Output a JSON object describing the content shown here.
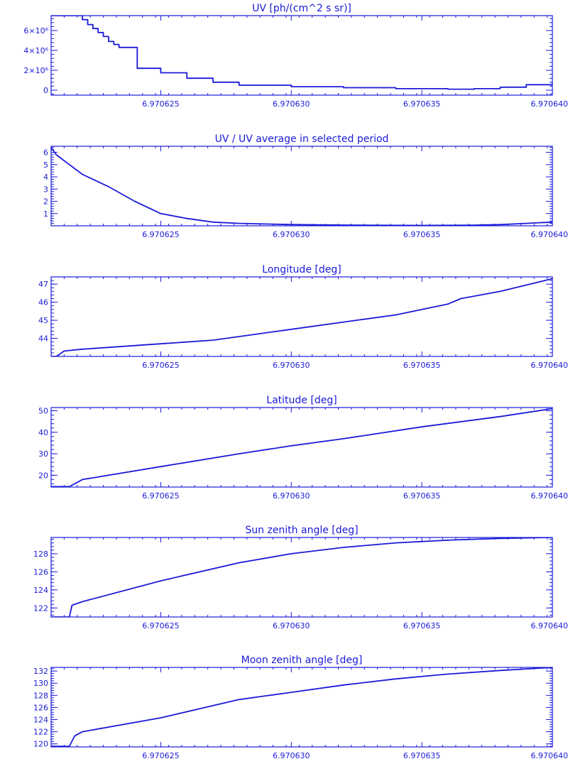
{
  "colors": {
    "plot": "#1a1ad8",
    "background": "#ffffff"
  },
  "chart_data": [
    {
      "type": "line",
      "title": "UV [ph/(cm^2 s sr)]",
      "xlim": [
        6.9706208,
        6.97064
      ],
      "ylim": [
        -500000,
        7500000
      ],
      "x_ticks": [
        6.970625,
        6.97063,
        6.970635,
        6.97064
      ],
      "x_tick_labels": [
        "6.970625",
        "6.970630",
        "6.970635",
        "6.970640"
      ],
      "y_ticks": [
        0,
        2000000,
        4000000,
        6000000
      ],
      "y_tick_labels": [
        "0",
        "2×10⁶",
        "4×10⁶",
        "6×10⁶"
      ],
      "step": true,
      "x": [
        6.9706208,
        6.9706218,
        6.970622,
        6.9706222,
        6.9706224,
        6.9706226,
        6.9706228,
        6.970623,
        6.9706232,
        6.9706234,
        6.970624,
        6.9706241,
        6.9706245,
        6.970625,
        6.970626,
        6.970627,
        6.970628,
        6.97063,
        6.970632,
        6.970634,
        6.970636,
        6.970637,
        6.970638,
        6.970639,
        6.97064
      ],
      "y": [
        7500000,
        7500000,
        7100000,
        6600000,
        6200000,
        5800000,
        5400000,
        4900000,
        4600000,
        4300000,
        4300000,
        2200000,
        2200000,
        1750000,
        1200000,
        800000,
        500000,
        350000,
        250000,
        150000,
        100000,
        150000,
        300000,
        550000,
        750000
      ]
    },
    {
      "type": "line",
      "title": "UV / UV average in selected period",
      "xlim": [
        6.9706208,
        6.97064
      ],
      "ylim": [
        0,
        6.5
      ],
      "x_ticks": [
        6.970625,
        6.97063,
        6.970635,
        6.97064
      ],
      "x_tick_labels": [
        "6.970625",
        "6.970630",
        "6.970635",
        "6.970640"
      ],
      "y_ticks": [
        1,
        2,
        3,
        4,
        5,
        6
      ],
      "y_tick_labels": [
        "1",
        "2",
        "3",
        "4",
        "5",
        "6"
      ],
      "x": [
        6.9706208,
        6.970621,
        6.9706215,
        6.970622,
        6.970623,
        6.970624,
        6.970625,
        6.970626,
        6.970627,
        6.970628,
        6.97063,
        6.970632,
        6.970635,
        6.970637,
        6.970638,
        6.970639,
        6.97064
      ],
      "y": [
        6.4,
        5.8,
        5.0,
        4.2,
        3.2,
        2.0,
        1.0,
        0.6,
        0.3,
        0.2,
        0.1,
        0.06,
        0.03,
        0.05,
        0.1,
        0.2,
        0.3
      ]
    },
    {
      "type": "line",
      "title": "Longitude [deg]",
      "xlim": [
        6.9706208,
        6.97064
      ],
      "ylim": [
        43.0,
        47.4
      ],
      "x_ticks": [
        6.970625,
        6.97063,
        6.970635,
        6.97064
      ],
      "x_tick_labels": [
        "6.970625",
        "6.970630",
        "6.970635",
        "6.970640"
      ],
      "y_ticks": [
        44,
        45,
        46,
        47
      ],
      "y_tick_labels": [
        "44",
        "45",
        "46",
        "47"
      ],
      "x": [
        6.9706208,
        6.970621,
        6.9706213,
        6.970622,
        6.970625,
        6.970627,
        6.97063,
        6.970632,
        6.970634,
        6.970636,
        6.9706365,
        6.970638,
        6.97064
      ],
      "y": [
        43.0,
        43.0,
        43.3,
        43.4,
        43.7,
        43.9,
        44.5,
        44.9,
        45.3,
        45.9,
        46.2,
        46.6,
        47.3
      ]
    },
    {
      "type": "line",
      "title": "Latitude [deg]",
      "xlim": [
        6.9706208,
        6.97064
      ],
      "ylim": [
        14.5,
        51.5
      ],
      "x_ticks": [
        6.970625,
        6.97063,
        6.970635,
        6.97064
      ],
      "x_tick_labels": [
        "6.970625",
        "6.970630",
        "6.970635",
        "6.970640"
      ],
      "y_ticks": [
        20,
        30,
        40,
        50
      ],
      "y_tick_labels": [
        "20",
        "30",
        "40",
        "50"
      ],
      "x": [
        6.9706208,
        6.9706215,
        6.970622,
        6.970625,
        6.970628,
        6.97063,
        6.970632,
        6.970635,
        6.970638,
        6.97064
      ],
      "y": [
        14.7,
        14.7,
        18.0,
        24.0,
        30.0,
        33.7,
        37.0,
        42.5,
        47.3,
        51.0
      ]
    },
    {
      "type": "line",
      "title": "Sun zenith angle [deg]",
      "xlim": [
        6.9706208,
        6.97064
      ],
      "ylim": [
        121.0,
        129.8
      ],
      "x_ticks": [
        6.970625,
        6.97063,
        6.970635,
        6.97064
      ],
      "x_tick_labels": [
        "6.970625",
        "6.970630",
        "6.970635",
        "6.970640"
      ],
      "y_ticks": [
        122,
        124,
        126,
        128
      ],
      "y_tick_labels": [
        "122",
        "124",
        "126",
        "128"
      ],
      "x": [
        6.9706208,
        6.9706215,
        6.9706216,
        6.970622,
        6.970625,
        6.970628,
        6.97063,
        6.970632,
        6.970634,
        6.970636,
        6.970638,
        6.97064
      ],
      "y": [
        121.0,
        121.0,
        122.3,
        122.7,
        125.0,
        127.0,
        128.0,
        128.7,
        129.2,
        129.5,
        129.7,
        129.8
      ]
    },
    {
      "type": "line",
      "title": "Moon zenith angle [deg]",
      "xlim": [
        6.9706208,
        6.97064
      ],
      "ylim": [
        119.5,
        132.6
      ],
      "x_ticks": [
        6.970625,
        6.97063,
        6.970635,
        6.97064
      ],
      "x_tick_labels": [
        "6.970625",
        "6.970630",
        "6.970635",
        "6.970640"
      ],
      "y_ticks": [
        120,
        122,
        124,
        126,
        128,
        130,
        132
      ],
      "y_tick_labels": [
        "120",
        "122",
        "124",
        "126",
        "128",
        "130",
        "132"
      ],
      "x": [
        6.9706208,
        6.9706215,
        6.9706217,
        6.970622,
        6.970625,
        6.970628,
        6.97063,
        6.970632,
        6.970634,
        6.970636,
        6.970638,
        6.97064
      ],
      "y": [
        119.6,
        119.6,
        121.3,
        122.0,
        124.3,
        127.3,
        128.5,
        129.7,
        130.7,
        131.5,
        132.1,
        132.6
      ]
    }
  ]
}
